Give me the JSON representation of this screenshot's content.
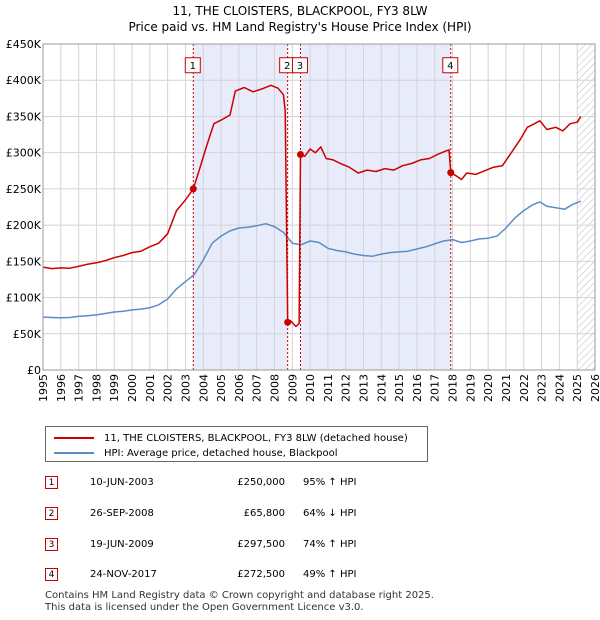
{
  "chart_data": {
    "type": "line",
    "title": "11, THE CLOISTERS, BLACKPOOL, FY3 8LW",
    "subtitle": "Price paid vs. HM Land Registry's House Price Index (HPI)",
    "xlim": [
      1995,
      2026
    ],
    "ylim": [
      0,
      450000
    ],
    "y_ticks": [
      {
        "value": 0,
        "label": "£0"
      },
      {
        "value": 50000,
        "label": "£50K"
      },
      {
        "value": 100000,
        "label": "£100K"
      },
      {
        "value": 150000,
        "label": "£150K"
      },
      {
        "value": 200000,
        "label": "£200K"
      },
      {
        "value": 250000,
        "label": "£250K"
      },
      {
        "value": 300000,
        "label": "£300K"
      },
      {
        "value": 350000,
        "label": "£350K"
      },
      {
        "value": 400000,
        "label": "£400K"
      },
      {
        "value": 450000,
        "label": "£450K"
      }
    ],
    "x_ticks": [
      "1995",
      "1996",
      "1997",
      "1998",
      "1999",
      "2000",
      "2001",
      "2002",
      "2003",
      "2004",
      "2005",
      "2006",
      "2007",
      "2008",
      "2009",
      "2010",
      "2011",
      "2012",
      "2013",
      "2014",
      "2015",
      "2016",
      "2017",
      "2018",
      "2019",
      "2020",
      "2021",
      "2022",
      "2023",
      "2024",
      "2025",
      "2026"
    ],
    "shaded_ranges": [
      [
        2003.44,
        2008.74
      ],
      [
        2009.46,
        2017.9
      ]
    ],
    "forecast_start": 2025.0,
    "series": [
      {
        "name": "11, THE CLOISTERS, BLACKPOOL, FY3 8LW (detached house)",
        "color": "#cc0000",
        "points": [
          [
            1995.0,
            142000
          ],
          [
            1995.5,
            140000
          ],
          [
            1996.0,
            141000
          ],
          [
            1996.5,
            140500
          ],
          [
            1997.0,
            143000
          ],
          [
            1997.5,
            146000
          ],
          [
            1998.0,
            148000
          ],
          [
            1998.5,
            151000
          ],
          [
            1999.0,
            155000
          ],
          [
            1999.5,
            158000
          ],
          [
            2000.0,
            162000
          ],
          [
            2000.5,
            164000
          ],
          [
            2001.0,
            170000
          ],
          [
            2001.5,
            175000
          ],
          [
            2002.0,
            188000
          ],
          [
            2002.5,
            220000
          ],
          [
            2003.0,
            235000
          ],
          [
            2003.44,
            250000
          ],
          [
            2003.8,
            278000
          ],
          [
            2004.2,
            310000
          ],
          [
            2004.6,
            340000
          ],
          [
            2005.0,
            345000
          ],
          [
            2005.5,
            352000
          ],
          [
            2005.8,
            385000
          ],
          [
            2006.3,
            390000
          ],
          [
            2006.8,
            384000
          ],
          [
            2007.3,
            388000
          ],
          [
            2007.8,
            393000
          ],
          [
            2008.2,
            389000
          ],
          [
            2008.5,
            380000
          ],
          [
            2008.6,
            358000
          ],
          [
            2008.74,
            65800
          ],
          [
            2008.9,
            68000
          ],
          [
            2009.2,
            60000
          ],
          [
            2009.38,
            64000
          ],
          [
            2009.46,
            297500
          ],
          [
            2009.7,
            295000
          ],
          [
            2010.0,
            305000
          ],
          [
            2010.3,
            300000
          ],
          [
            2010.6,
            308000
          ],
          [
            2010.9,
            292000
          ],
          [
            2011.3,
            290000
          ],
          [
            2011.7,
            285000
          ],
          [
            2012.2,
            280000
          ],
          [
            2012.7,
            272000
          ],
          [
            2013.2,
            276000
          ],
          [
            2013.7,
            274000
          ],
          [
            2014.2,
            278000
          ],
          [
            2014.7,
            276000
          ],
          [
            2015.2,
            282000
          ],
          [
            2015.7,
            285000
          ],
          [
            2016.2,
            290000
          ],
          [
            2016.7,
            292000
          ],
          [
            2017.2,
            298000
          ],
          [
            2017.6,
            302000
          ],
          [
            2017.8,
            304000
          ],
          [
            2017.9,
            272500
          ],
          [
            2018.2,
            268000
          ],
          [
            2018.5,
            263000
          ],
          [
            2018.8,
            272000
          ],
          [
            2019.3,
            270000
          ],
          [
            2019.8,
            275000
          ],
          [
            2020.3,
            280000
          ],
          [
            2020.8,
            282000
          ],
          [
            2021.3,
            300000
          ],
          [
            2021.8,
            318000
          ],
          [
            2022.2,
            335000
          ],
          [
            2022.6,
            340000
          ],
          [
            2022.9,
            344000
          ],
          [
            2023.3,
            332000
          ],
          [
            2023.8,
            335000
          ],
          [
            2024.2,
            330000
          ],
          [
            2024.6,
            340000
          ],
          [
            2025.0,
            342000
          ],
          [
            2025.2,
            350000
          ]
        ]
      },
      {
        "name": "HPI: Average price, detached house, Blackpool",
        "color": "#5b8cc8",
        "points": [
          [
            1995.0,
            73000
          ],
          [
            1995.5,
            72500
          ],
          [
            1996.0,
            72000
          ],
          [
            1996.5,
            72500
          ],
          [
            1997.0,
            74000
          ],
          [
            1997.5,
            75000
          ],
          [
            1998.0,
            76000
          ],
          [
            1998.5,
            78000
          ],
          [
            1999.0,
            80000
          ],
          [
            1999.5,
            81000
          ],
          [
            2000.0,
            83000
          ],
          [
            2000.5,
            84000
          ],
          [
            2001.0,
            86000
          ],
          [
            2001.5,
            90000
          ],
          [
            2002.0,
            98000
          ],
          [
            2002.5,
            112000
          ],
          [
            2003.0,
            122000
          ],
          [
            2003.5,
            132000
          ],
          [
            2004.0,
            152000
          ],
          [
            2004.5,
            175000
          ],
          [
            2005.0,
            185000
          ],
          [
            2005.5,
            192000
          ],
          [
            2006.0,
            196000
          ],
          [
            2006.5,
            197000
          ],
          [
            2007.0,
            199000
          ],
          [
            2007.5,
            202000
          ],
          [
            2008.0,
            198000
          ],
          [
            2008.5,
            190000
          ],
          [
            2009.0,
            175000
          ],
          [
            2009.5,
            173000
          ],
          [
            2010.0,
            178000
          ],
          [
            2010.5,
            176000
          ],
          [
            2011.0,
            168000
          ],
          [
            2011.5,
            165000
          ],
          [
            2012.0,
            163000
          ],
          [
            2012.5,
            160000
          ],
          [
            2013.0,
            158000
          ],
          [
            2013.5,
            157000
          ],
          [
            2014.0,
            160000
          ],
          [
            2014.5,
            162000
          ],
          [
            2015.0,
            163000
          ],
          [
            2015.5,
            164000
          ],
          [
            2016.0,
            167000
          ],
          [
            2016.5,
            170000
          ],
          [
            2017.0,
            174000
          ],
          [
            2017.5,
            178000
          ],
          [
            2018.0,
            180000
          ],
          [
            2018.5,
            176000
          ],
          [
            2019.0,
            178000
          ],
          [
            2019.5,
            181000
          ],
          [
            2020.0,
            182000
          ],
          [
            2020.5,
            185000
          ],
          [
            2021.0,
            196000
          ],
          [
            2021.5,
            210000
          ],
          [
            2022.0,
            220000
          ],
          [
            2022.5,
            228000
          ],
          [
            2022.9,
            232000
          ],
          [
            2023.3,
            226000
          ],
          [
            2023.8,
            224000
          ],
          [
            2024.3,
            222000
          ],
          [
            2024.7,
            228000
          ],
          [
            2025.2,
            233000
          ]
        ]
      }
    ],
    "sales": [
      {
        "id": "1",
        "x": 2003.44,
        "y": 250000
      },
      {
        "id": "2",
        "x": 2008.74,
        "y": 65800
      },
      {
        "id": "3",
        "x": 2009.46,
        "y": 297500
      },
      {
        "id": "4",
        "x": 2017.9,
        "y": 272500
      }
    ],
    "marker_label_value": 420000
  },
  "legend": {
    "items": [
      {
        "label": "11, THE CLOISTERS, BLACKPOOL, FY3 8LW (detached house)",
        "color": "#cc0000"
      },
      {
        "label": "HPI: Average price, detached house, Blackpool",
        "color": "#5b8cc8"
      }
    ]
  },
  "transactions": [
    {
      "num": "1",
      "date": "10-JUN-2003",
      "price": "£250,000",
      "hpi": "95% ↑ HPI"
    },
    {
      "num": "2",
      "date": "26-SEP-2008",
      "price": "£65,800",
      "hpi": "64% ↓ HPI"
    },
    {
      "num": "3",
      "date": "19-JUN-2009",
      "price": "£297,500",
      "hpi": "74% ↑ HPI"
    },
    {
      "num": "4",
      "date": "24-NOV-2017",
      "price": "£272,500",
      "hpi": "49% ↑ HPI"
    }
  ],
  "footer": {
    "line1": "Contains HM Land Registry data © Crown copyright and database right 2025.",
    "line2": "This data is licensed under the Open Government Licence v3.0."
  }
}
